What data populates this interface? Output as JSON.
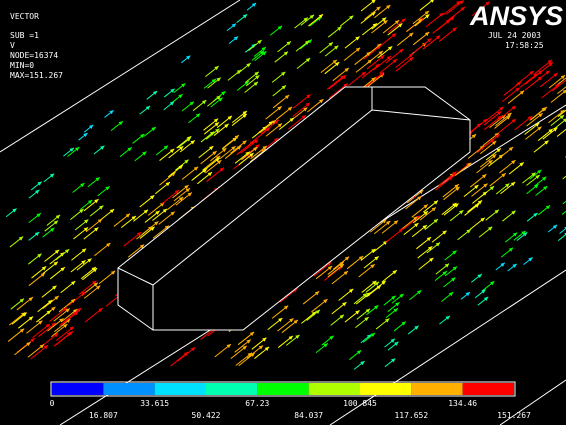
{
  "header": {
    "lines": [
      "VECTOR",
      "SUB =1",
      "V",
      "NODE=16374",
      "MIN=0",
      "MAX=151.267"
    ],
    "logo": "ANSYS",
    "date": "JUL 24 2003",
    "time": "17:58:25"
  },
  "legend": {
    "top_labels": [
      "0",
      "33.615",
      "67.23",
      "100.845",
      "134.46"
    ],
    "bottom_labels": [
      "16.807",
      "50.422",
      "84.037",
      "117.652",
      "151.267"
    ]
  }
}
